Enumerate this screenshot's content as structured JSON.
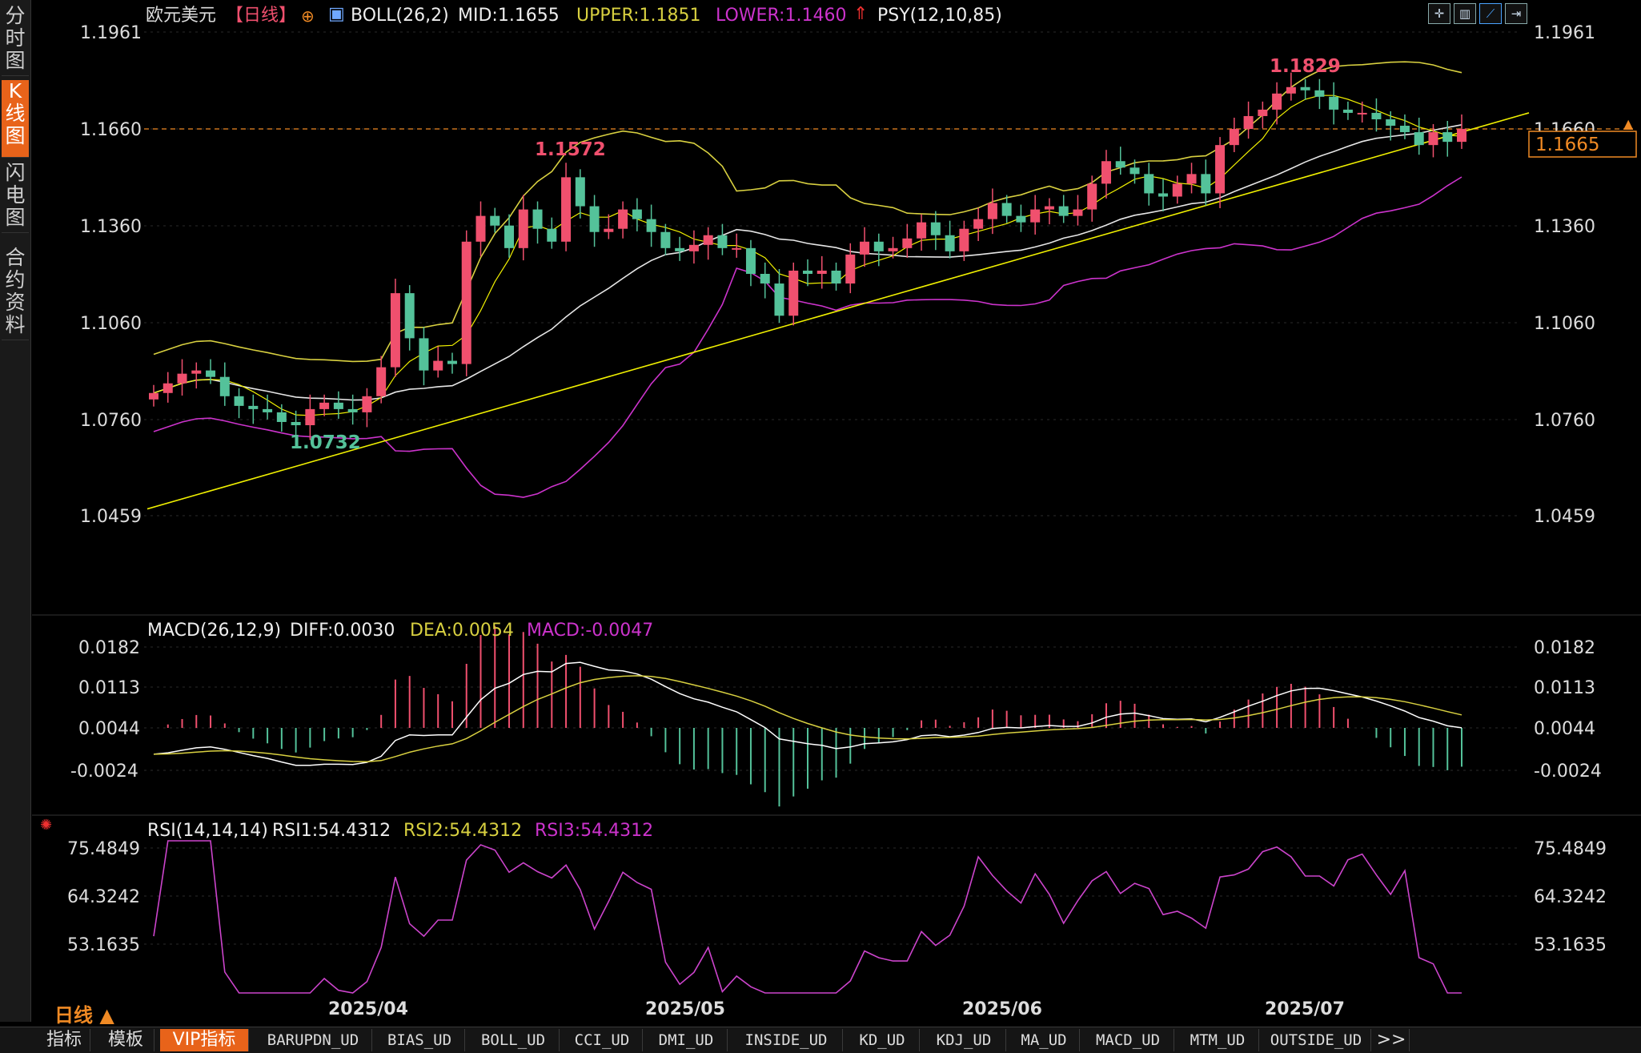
{
  "sidebar": {
    "tabs": [
      {
        "label": "分时图",
        "active": false
      },
      {
        "label": "K线图",
        "active": true
      },
      {
        "label": "闪电图",
        "active": false
      },
      {
        "label": "合约资料",
        "active": false
      }
    ]
  },
  "header": {
    "symbol": "欧元美元",
    "period_tag": "【日线】",
    "boll": "BOLL(26,2)",
    "mid": "MID:1.1655",
    "upper": "UPPER:1.1851",
    "lower": "LOWER:1.1460",
    "psy": "PSY(12,10,85)"
  },
  "toolbar": {
    "icons": [
      "crosshair-icon",
      "candle-icon",
      "line-icon",
      "expand-icon"
    ]
  },
  "price_axis": {
    "labels": [
      "1.1961",
      "1.1660",
      "1.1360",
      "1.1060",
      "1.0760",
      "1.0459"
    ],
    "current": "1.1665",
    "max_label": "1.1829",
    "min_label": "1.0732",
    "prev_high_label": "1.1572"
  },
  "macd": {
    "title": "MACD(26,12,9)",
    "diff": "DIFF:0.0030",
    "dea": "DEA:0.0054",
    "macd": "MACD:-0.0047",
    "labels": [
      "0.0182",
      "0.0113",
      "0.0044",
      "-0.0024"
    ]
  },
  "rsi": {
    "title": "RSI(14,14,14)",
    "rsi1": "RSI1:54.4312",
    "rsi2": "RSI2:54.4312",
    "rsi3": "RSI3:54.4312",
    "labels": [
      "75.4849",
      "64.3242",
      "53.1635"
    ]
  },
  "time_axis": [
    "2025/04",
    "2025/05",
    "2025/06",
    "2025/07"
  ],
  "period_label": "日线 ▲",
  "bottom_tabs": [
    "指标",
    "模板",
    "VIP指标",
    "BARUPDN_UD",
    "BIAS_UD",
    "BOLL_UD",
    "CCI_UD",
    "DMI_UD",
    "INSIDE_UD",
    "KD_UD",
    "KDJ_UD",
    "MA_UD",
    "MACD_UD",
    "MTM_UD",
    "OUTSIDE_UD",
    ">>"
  ],
  "colors": {
    "up": "#f0506e",
    "down": "#54c29a",
    "boll_upper": "#d8d040",
    "boll_mid": "#e6e6e6",
    "boll_lower": "#cc33cc",
    "trend": "#f0f000",
    "rsi": "#cc44cc",
    "dea": "#d8d040",
    "diff": "#ffffff"
  },
  "chart_data": [
    {
      "type": "candlestick",
      "title": "欧元美元 日线",
      "x_range": [
        "2025-03",
        "2025-07"
      ],
      "ylim": [
        1.0459,
        1.1961
      ],
      "highlights": {
        "high": 1.1829,
        "low": 1.0732,
        "local_high": 1.1572,
        "current": 1.1665
      },
      "bollinger": {
        "mid": 1.1655,
        "upper": 1.1851,
        "lower": 1.146
      },
      "closes": [
        1.084,
        1.087,
        1.09,
        1.091,
        1.089,
        1.083,
        1.08,
        1.079,
        1.078,
        1.075,
        1.074,
        1.079,
        1.081,
        1.079,
        1.078,
        1.083,
        1.092,
        1.115,
        1.101,
        1.091,
        1.094,
        1.093,
        1.131,
        1.139,
        1.136,
        1.129,
        1.141,
        1.135,
        1.131,
        1.151,
        1.142,
        1.134,
        1.135,
        1.141,
        1.138,
        1.134,
        1.129,
        1.128,
        1.13,
        1.133,
        1.129,
        1.129,
        1.121,
        1.118,
        1.108,
        1.122,
        1.121,
        1.122,
        1.118,
        1.127,
        1.131,
        1.128,
        1.129,
        1.132,
        1.137,
        1.133,
        1.128,
        1.135,
        1.138,
        1.143,
        1.139,
        1.137,
        1.141,
        1.142,
        1.139,
        1.141,
        1.149,
        1.156,
        1.154,
        1.152,
        1.146,
        1.145,
        1.149,
        1.152,
        1.146,
        1.161,
        1.166,
        1.17,
        1.172,
        1.177,
        1.179,
        1.178,
        1.176,
        1.172,
        1.171,
        1.171,
        1.169,
        1.167,
        1.165,
        1.161,
        1.165,
        1.162,
        1.166
      ]
    },
    {
      "type": "bar+line",
      "title": "MACD(26,12,9)",
      "ylim": [
        -0.0024,
        0.0182
      ],
      "diff": 0.003,
      "dea": 0.0054,
      "macd": -0.0047
    },
    {
      "type": "line",
      "title": "RSI(14,14,14)",
      "ylim": [
        53.1635,
        75.4849
      ],
      "rsi1": 54.4312,
      "rsi2": 54.4312,
      "rsi3": 54.4312
    }
  ]
}
